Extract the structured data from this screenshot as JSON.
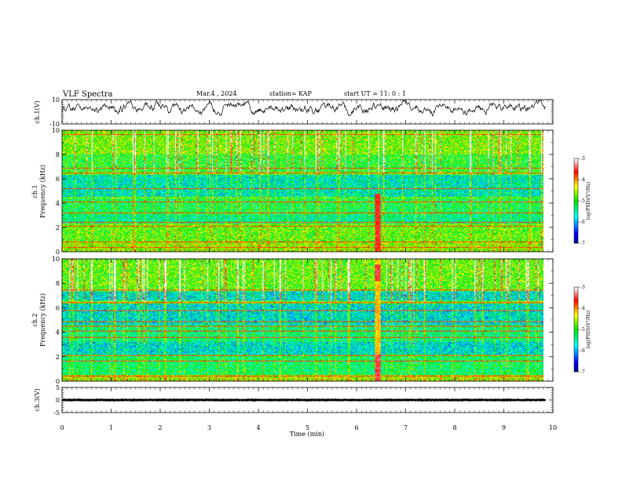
{
  "header": {
    "title": "VLF Spectra",
    "date": "Mar.4 , 2024",
    "station": "station= KAP",
    "start": "start UT = 11: 0 : 1"
  },
  "chart_data": [
    {
      "type": "line",
      "name": "ch1-waveform",
      "ylabel": "ch.1(V)",
      "ylim": [
        -10,
        10
      ],
      "yticks": [
        "10",
        "-10"
      ],
      "xlim": [
        0,
        10
      ],
      "approx_level": 3,
      "approx_amplitude": 3.5
    },
    {
      "type": "heatmap",
      "name": "ch1-spectrogram",
      "ylabel": "ch.1\nFrequency (kHz)",
      "ylabel_lines": [
        "ch.1",
        "Frequency (kHz)"
      ],
      "ylim": [
        0,
        10
      ],
      "yticks": [
        "0",
        "2",
        "4",
        "6",
        "8",
        "10"
      ],
      "xlim": [
        0,
        9.85
      ],
      "burst_time_min": 6.45,
      "colorbar": {
        "label": "log(PSD)(V²/Hz)",
        "range": [
          -7,
          -3
        ],
        "ticks": [
          "-3",
          "-4",
          "-5",
          "-6",
          "-7"
        ],
        "colors": [
          "#000080",
          "#0000ff",
          "#00ffff",
          "#00ff00",
          "#ffff00",
          "#ff0000",
          "#ffffff"
        ]
      }
    },
    {
      "type": "heatmap",
      "name": "ch2-spectrogram",
      "ylabel": "ch.2\nFrequency (kHz)",
      "ylabel_lines": [
        "ch.2",
        "Frequency (kHz)"
      ],
      "ylim": [
        0,
        10
      ],
      "yticks": [
        "0",
        "2",
        "4",
        "6",
        "8",
        "10"
      ],
      "xlim": [
        0,
        9.85
      ],
      "burst_time_min": 6.45,
      "colorbar": {
        "label": "log(PSD)(V²/Hz)",
        "range": [
          -7,
          -3
        ],
        "ticks": [
          "-3",
          "-4",
          "-5",
          "-6",
          "-7"
        ],
        "colors": [
          "#000080",
          "#0000ff",
          "#00ffff",
          "#00ff00",
          "#ffff00",
          "#ff0000",
          "#ffffff"
        ]
      }
    },
    {
      "type": "line",
      "name": "ch3-waveform",
      "ylabel": "ch.3(V)",
      "ylim": [
        -5,
        5
      ],
      "yticks": [
        "5",
        "0",
        "-5"
      ],
      "xlim": [
        0,
        10
      ],
      "approx_level": 0,
      "approx_amplitude": 0.6,
      "xlabel": "Time (min)",
      "xticks": [
        "0",
        "1",
        "2",
        "3",
        "4",
        "5",
        "6",
        "7",
        "8",
        "9",
        "10"
      ]
    }
  ]
}
